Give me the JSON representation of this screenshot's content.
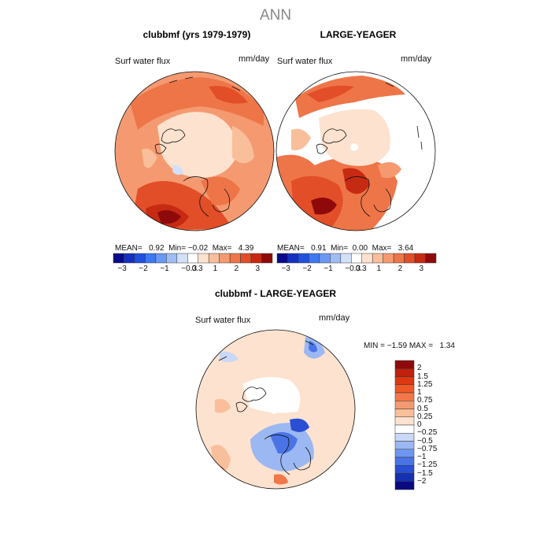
{
  "title": "ANN",
  "panels": [
    {
      "title": "clubbmf (yrs 1979-1979)",
      "field_label": "Surf water flux",
      "units": "mm/day",
      "mean_label": "MEAN=",
      "mean": "0.92",
      "min_label": "Min=",
      "min": "−0.02",
      "max_label": "Max=",
      "max": "4.39"
    },
    {
      "title": "LARGE-YEAGER",
      "field_label": "Surf water flux",
      "units": "mm/day",
      "mean_label": "MEAN=",
      "mean": "0.91",
      "min_label": "Min=",
      "min": "0.00",
      "max_label": "Max=",
      "max": "3.64"
    },
    {
      "title": "clubbmf - LARGE-YEAGER",
      "field_label": "Surf water flux",
      "units": "mm/day",
      "min_label": "MIN =",
      "min": "−1.59",
      "max_label": "MAX =",
      "max": "1.34"
    }
  ],
  "colorbar_top": {
    "ticks": [
      "−3",
      "−2",
      "−1",
      "−0.3",
      "0.3",
      "1",
      "2",
      "3"
    ],
    "colors": [
      "#0a0a8a",
      "#1530c0",
      "#2050e0",
      "#3f78f0",
      "#6b98f4",
      "#9fbcf4",
      "#d2e0f8",
      "#ffffff",
      "#fde2cf",
      "#f9bf9a",
      "#f59a70",
      "#ee7548",
      "#e24e28",
      "#c72a12",
      "#8e0a0a"
    ]
  },
  "colorbar_diff": {
    "labels": [
      "2",
      "1.5",
      "1.25",
      "1",
      "0.75",
      "0.5",
      "0.25",
      "0",
      "−0.25",
      "−0.5",
      "−0.75",
      "−1",
      "−1.25",
      "−1.5",
      "−2"
    ],
    "colors": [
      "#8e0a0a",
      "#c0200e",
      "#dc3814",
      "#ee5826",
      "#f2784a",
      "#f59a70",
      "#f9bf9a",
      "#fde2cf",
      "#ffffff",
      "#c8d8f6",
      "#9bb8f2",
      "#6f96ee",
      "#4a74e6",
      "#2a4fd4",
      "#1530b0",
      "#0a0a80"
    ]
  }
}
